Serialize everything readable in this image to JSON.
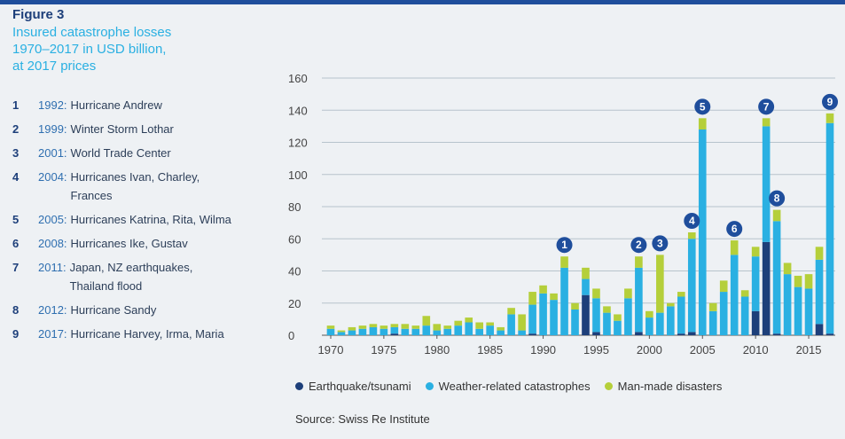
{
  "figure_label": "Figure 3",
  "title": "Insured catastrophe losses\n1970–2017 in USD billion,\nat 2017 prices",
  "events": [
    {
      "num": "1",
      "year": "1992",
      "text": "Hurricane Andrew"
    },
    {
      "num": "2",
      "year": "1999",
      "text": "Winter Storm Lothar"
    },
    {
      "num": "3",
      "year": "2001",
      "text": "World Trade Center"
    },
    {
      "num": "4",
      "year": "2004",
      "text": "Hurricanes Ivan, Charley,\nFrances"
    },
    {
      "num": "5",
      "year": "2005",
      "text": "Hurricanes Katrina, Rita, Wilma"
    },
    {
      "num": "6",
      "year": "2008",
      "text": "Hurricanes Ike, Gustav"
    },
    {
      "num": "7",
      "year": "2011",
      "text": "Japan, NZ earthquakes,\nThailand flood"
    },
    {
      "num": "8",
      "year": "2012",
      "text": "Hurricane Sandy"
    },
    {
      "num": "9",
      "year": "2017",
      "text": "Hurricane Harvey, Irma, Maria"
    }
  ],
  "legend": {
    "earthquake": "Earthquake/tsunami",
    "weather": "Weather-related catastrophes",
    "manmade": "Man-made disasters"
  },
  "source": "Source: Swiss Re Institute",
  "colors": {
    "earthquake": "#1d3f7a",
    "weather": "#2ab0e2",
    "manmade": "#b5cf3a",
    "marker": "#1f4e9c",
    "gridline": "#b7c3cc"
  },
  "chart_data": {
    "type": "bar",
    "stacked": true,
    "x": [
      1970,
      1971,
      1972,
      1973,
      1974,
      1975,
      1976,
      1977,
      1978,
      1979,
      1980,
      1981,
      1982,
      1983,
      1984,
      1985,
      1986,
      1987,
      1988,
      1989,
      1990,
      1991,
      1992,
      1993,
      1994,
      1995,
      1996,
      1997,
      1998,
      1999,
      2000,
      2001,
      2002,
      2003,
      2004,
      2005,
      2006,
      2007,
      2008,
      2009,
      2010,
      2011,
      2012,
      2013,
      2014,
      2015,
      2016,
      2017
    ],
    "x_ticks": [
      1970,
      1975,
      1980,
      1985,
      1990,
      1995,
      2000,
      2005,
      2010,
      2015
    ],
    "y_ticks": [
      0,
      20,
      40,
      60,
      80,
      100,
      120,
      140,
      160
    ],
    "ylim": [
      0,
      160
    ],
    "series": [
      {
        "name": "Earthquake/tsunami",
        "values": [
          0,
          0,
          0,
          0,
          0,
          0,
          1,
          0,
          0,
          0,
          0,
          0,
          0,
          0,
          0,
          0,
          0,
          0,
          0,
          1,
          0,
          0,
          0,
          0,
          25,
          2,
          0,
          0,
          0,
          2,
          0,
          0,
          0,
          1,
          2,
          0,
          0,
          0,
          0,
          0,
          15,
          58,
          1,
          0,
          0,
          0,
          7,
          1
        ]
      },
      {
        "name": "Weather-related catastrophes",
        "values": [
          4,
          2,
          3,
          4,
          5,
          4,
          4,
          4,
          4,
          6,
          3,
          4,
          6,
          8,
          4,
          6,
          3,
          13,
          3,
          18,
          26,
          22,
          42,
          16,
          10,
          21,
          14,
          9,
          23,
          40,
          11,
          14,
          18,
          23,
          58,
          128,
          15,
          27,
          50,
          24,
          34,
          72,
          70,
          38,
          30,
          29,
          40,
          131
        ]
      },
      {
        "name": "Man-made disasters",
        "values": [
          2,
          1,
          2,
          2,
          2,
          2,
          2,
          3,
          2,
          6,
          4,
          2,
          3,
          3,
          4,
          2,
          2,
          4,
          10,
          8,
          5,
          4,
          7,
          4,
          7,
          6,
          4,
          4,
          6,
          7,
          4,
          36,
          2,
          3,
          4,
          7,
          5,
          7,
          9,
          4,
          6,
          5,
          7,
          7,
          7,
          9,
          8,
          6
        ]
      }
    ],
    "markers": [
      {
        "label": "1",
        "year": 1992,
        "total": 49
      },
      {
        "label": "2",
        "year": 1999,
        "total": 49
      },
      {
        "label": "3",
        "year": 2001,
        "total": 50
      },
      {
        "label": "4",
        "year": 2004,
        "total": 64
      },
      {
        "label": "5",
        "year": 2005,
        "total": 135
      },
      {
        "label": "6",
        "year": 2008,
        "total": 59
      },
      {
        "label": "7",
        "year": 2011,
        "total": 135
      },
      {
        "label": "8",
        "year": 2012,
        "total": 78
      },
      {
        "label": "9",
        "year": 2017,
        "total": 138
      }
    ]
  }
}
